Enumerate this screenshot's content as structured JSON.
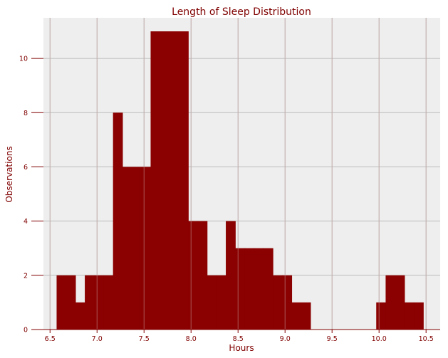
{
  "chart_data": {
    "type": "bar",
    "subtype": "histogram",
    "title": "Length of Sleep Distribution",
    "xlabel": "Hours",
    "ylabel": "Observations",
    "xlim": [
      6.43,
      10.65
    ],
    "ylim": [
      0,
      11.5
    ],
    "bin_width": 0.1,
    "xticks": [
      6.5,
      7.0,
      7.5,
      8.0,
      8.5,
      9.0,
      9.5,
      10.0,
      10.5
    ],
    "xtick_labels": [
      "6.5",
      "7.0",
      "7.5",
      "8.0",
      "8.5",
      "9.0",
      "9.5",
      "10.0",
      "10.5"
    ],
    "yticks": [
      0,
      2,
      4,
      6,
      8,
      10
    ],
    "ytick_labels": [
      "0",
      "2",
      "4",
      "6",
      "8",
      "10"
    ],
    "bins": [
      {
        "start": 6.57,
        "end": 6.67,
        "count": 2
      },
      {
        "start": 6.67,
        "end": 6.77,
        "count": 2
      },
      {
        "start": 6.77,
        "end": 6.87,
        "count": 1
      },
      {
        "start": 6.87,
        "end": 6.97,
        "count": 2
      },
      {
        "start": 6.97,
        "end": 7.07,
        "count": 2
      },
      {
        "start": 7.07,
        "end": 7.17,
        "count": 2
      },
      {
        "start": 7.17,
        "end": 7.27,
        "count": 8
      },
      {
        "start": 7.27,
        "end": 7.37,
        "count": 6
      },
      {
        "start": 7.37,
        "end": 7.47,
        "count": 6
      },
      {
        "start": 7.47,
        "end": 7.57,
        "count": 6
      },
      {
        "start": 7.57,
        "end": 7.67,
        "count": 11
      },
      {
        "start": 7.67,
        "end": 7.77,
        "count": 11
      },
      {
        "start": 7.77,
        "end": 7.87,
        "count": 11
      },
      {
        "start": 7.87,
        "end": 7.97,
        "count": 11
      },
      {
        "start": 7.97,
        "end": 8.07,
        "count": 4
      },
      {
        "start": 8.07,
        "end": 8.17,
        "count": 4
      },
      {
        "start": 8.17,
        "end": 8.27,
        "count": 2
      },
      {
        "start": 8.27,
        "end": 8.37,
        "count": 2
      },
      {
        "start": 8.37,
        "end": 8.47,
        "count": 4
      },
      {
        "start": 8.47,
        "end": 8.57,
        "count": 3
      },
      {
        "start": 8.57,
        "end": 8.67,
        "count": 3
      },
      {
        "start": 8.67,
        "end": 8.77,
        "count": 3
      },
      {
        "start": 8.77,
        "end": 8.87,
        "count": 3
      },
      {
        "start": 8.87,
        "end": 8.97,
        "count": 2
      },
      {
        "start": 8.97,
        "end": 9.07,
        "count": 2
      },
      {
        "start": 9.07,
        "end": 9.17,
        "count": 1
      },
      {
        "start": 9.17,
        "end": 9.27,
        "count": 1
      },
      {
        "start": 9.97,
        "end": 10.07,
        "count": 1
      },
      {
        "start": 10.07,
        "end": 10.17,
        "count": 2
      },
      {
        "start": 10.17,
        "end": 10.27,
        "count": 2
      },
      {
        "start": 10.27,
        "end": 10.37,
        "count": 1
      },
      {
        "start": 10.37,
        "end": 10.47,
        "count": 1
      }
    ],
    "grid": true,
    "legend": "none",
    "colors": {
      "bar": "#8b0000",
      "plot_background": "#eeeeee",
      "grid": "#bbbbbb",
      "text": "#800000"
    }
  }
}
